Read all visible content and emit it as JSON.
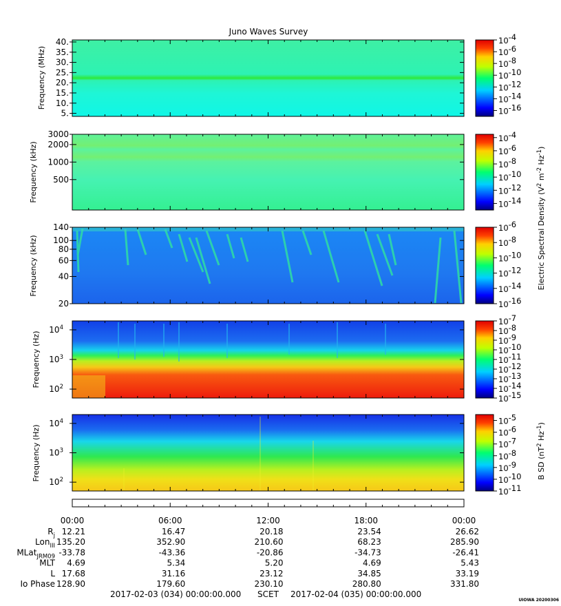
{
  "title": "Juno Waves Survey",
  "panels": [
    {
      "ylabel": "Frequency (MHz)",
      "yscale": "linear",
      "ylim": [
        3.5,
        41
      ],
      "yticks": [
        "40.",
        "35.",
        "30.",
        "25.",
        "20.",
        "15.",
        "10.",
        "5."
      ],
      "ytick_values": [
        40,
        35,
        30,
        25,
        20,
        15,
        10,
        5
      ],
      "colorbar_ticks": [
        "-4",
        "-6",
        "-8",
        "-10",
        "-12",
        "-14",
        "-16"
      ],
      "colorbar_range": [
        -17,
        -4
      ]
    },
    {
      "ylabel": "Frequency (kHz)",
      "yscale": "log",
      "ylim": [
        150,
        3000
      ],
      "yticks": [
        "3000",
        "2000",
        "1000",
        "500"
      ],
      "ytick_values": [
        3000,
        2000,
        1000,
        500
      ],
      "colorbar_ticks": [
        "-4",
        "-6",
        "-8",
        "-10",
        "-12",
        "-14"
      ],
      "colorbar_range": [
        -15,
        -3.5
      ]
    },
    {
      "ylabel": "Frequency (kHz)",
      "yscale": "log",
      "ylim": [
        20,
        140
      ],
      "yticks": [
        "140",
        "100",
        "80",
        "60",
        "40",
        "20"
      ],
      "ytick_values": [
        140,
        100,
        80,
        60,
        40,
        20
      ],
      "colorbar_ticks": [
        "-6",
        "-8",
        "-10",
        "-12",
        "-14",
        "-16"
      ],
      "colorbar_range": [
        -16,
        -6
      ]
    },
    {
      "ylabel": "Frequency (Hz)",
      "yscale": "log",
      "ylim": [
        50,
        20000
      ],
      "yticks": [
        "4",
        "3",
        "2"
      ],
      "ytick_values": [
        10000,
        1000,
        100
      ],
      "colorbar_ticks": [
        "-7",
        "-8",
        "-9",
        "-10",
        "-11",
        "-12",
        "-13",
        "-14",
        "-15"
      ],
      "colorbar_range": [
        -15,
        -7
      ]
    },
    {
      "ylabel": "Frequency (Hz)",
      "yscale": "log",
      "ylim": [
        50,
        20000
      ],
      "yticks": [
        "4",
        "3",
        "2"
      ],
      "ytick_values": [
        10000,
        1000,
        100
      ],
      "colorbar_ticks": [
        "-5",
        "-6",
        "-7",
        "-8",
        "-9",
        "-10",
        "-11"
      ],
      "colorbar_range": [
        -11,
        -4.5
      ]
    }
  ],
  "colorbar_labels": {
    "electric_main": "Electric Spectral Density (V",
    "electric_unit": "m",
    "electric_tail": "Hz",
    "magnetic_main": "B SD (nT",
    "magnetic_tail": "Hz",
    "exp_2": "2",
    "exp_neg2": "-2",
    "exp_neg1": "-1",
    "close": ")"
  },
  "ephemeris": {
    "times": [
      "00:00",
      "06:00",
      "12:00",
      "18:00",
      "00:00"
    ],
    "rows": [
      {
        "label": "R",
        "sub": "j",
        "values": [
          "12.21",
          "16.47",
          "20.18",
          "23.54",
          "26.62"
        ]
      },
      {
        "label": "Lon",
        "sub": "III",
        "values": [
          "135.20",
          "352.90",
          "210.60",
          "68.23",
          "285.90"
        ]
      },
      {
        "label": "MLat",
        "sub": "JRM09",
        "values": [
          "-33.78",
          "-43.36",
          "-20.86",
          "-34.73",
          "-26.41"
        ]
      },
      {
        "label": "MLT",
        "sub": "",
        "values": [
          "4.69",
          "5.34",
          "5.20",
          "4.69",
          "5.43"
        ]
      },
      {
        "label": "L",
        "sub": "",
        "values": [
          "17.68",
          "31.16",
          "23.12",
          "34.85",
          "33.19"
        ]
      },
      {
        "label": "Io Phase",
        "sub": "",
        "values": [
          "128.90",
          "179.60",
          "230.10",
          "280.80",
          "331.80"
        ]
      }
    ]
  },
  "footer": {
    "start": "2017-02-03 (034) 00:00:00.000",
    "scet": "SCET",
    "end": "2017-02-04 (035) 00:00:00.000",
    "stamp": "UIOWA 20200306"
  },
  "chart_data": [
    {
      "type": "heatmap",
      "title": "Juno Waves Survey",
      "xlabel": "SCET",
      "x_range": [
        "2017-02-03 00:00",
        "2017-02-04 00:00"
      ],
      "ylabel": "Frequency (MHz)",
      "ylim": [
        3.5,
        41
      ],
      "colorbar": "log10 Electric Spectral Density (V2 m-2 Hz-1)",
      "clim_exponent": [
        -17,
        -4
      ],
      "features": "uniform background near 1e-12; narrow enhanced band at 20-22 MHz"
    },
    {
      "type": "heatmap",
      "ylabel": "Frequency (kHz)",
      "ylim": [
        150,
        3000
      ],
      "yscale": "log",
      "colorbar": "log10 Electric Spectral Density (V2 m-2 Hz-1)",
      "clim_exponent": [
        -15,
        -3.5
      ],
      "features": "background near 1e-11 with faint horizontal bands near 1100 and 1800 kHz"
    },
    {
      "type": "heatmap",
      "ylabel": "Frequency (kHz)",
      "ylim": [
        20,
        140
      ],
      "yscale": "log",
      "colorbar": "log10 Electric Spectral Density (V2 m-2 Hz-1)",
      "clim_exponent": [
        -16,
        -6
      ],
      "features": "background near 1e-14 with drifting bursty emissions between 40 and 140 kHz"
    },
    {
      "type": "heatmap",
      "ylabel": "Frequency (Hz)",
      "ylim": [
        50,
        20000
      ],
      "yscale": "log",
      "colorbar": "log10 Electric Spectral Density (V2 m-2 Hz-1)",
      "clim_exponent": [
        -15,
        -7
      ],
      "features": "intense emission below ~1 kHz (1e-8 to 1e-7), falling to 1e-14 above ~2 kHz"
    },
    {
      "type": "heatmap",
      "ylabel": "Frequency (Hz)",
      "ylim": [
        50,
        20000
      ],
      "yscale": "log",
      "colorbar": "log10 B SD (nT2 Hz-1)",
      "clim_exponent": [
        -11,
        -4.5
      ],
      "features": "magnetic spectral density decreasing with frequency, ~1e-6 at 100 Hz to ~1e-11 above 8 kHz"
    }
  ]
}
